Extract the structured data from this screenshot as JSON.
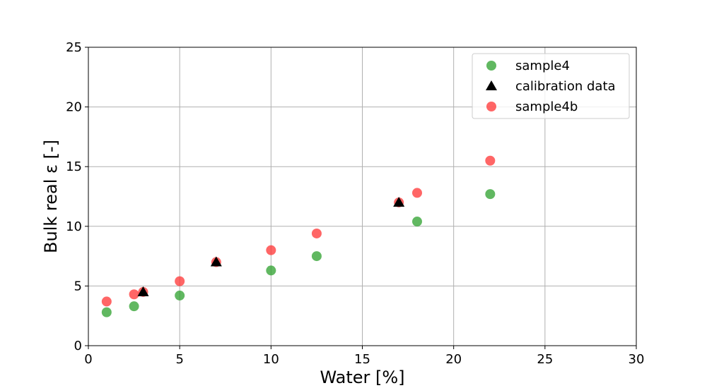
{
  "chart_data": {
    "type": "scatter",
    "title": "",
    "xlabel": "Water [%]",
    "ylabel": "Bulk real ε [-]",
    "xlim": [
      0,
      30
    ],
    "ylim": [
      0,
      25
    ],
    "xticks": [
      0,
      5,
      10,
      15,
      20,
      25,
      30
    ],
    "yticks": [
      0,
      5,
      10,
      15,
      20,
      25
    ],
    "grid": true,
    "legend_position": "top-right",
    "series": [
      {
        "name": "sample4",
        "marker": "circle",
        "color": "#2ca02c",
        "points": [
          {
            "x": 1,
            "y": 2.8
          },
          {
            "x": 2.5,
            "y": 3.3
          },
          {
            "x": 5,
            "y": 4.2
          },
          {
            "x": 10,
            "y": 6.3
          },
          {
            "x": 12.5,
            "y": 7.5
          },
          {
            "x": 18,
            "y": 10.4
          },
          {
            "x": 22,
            "y": 12.7
          }
        ]
      },
      {
        "name": "calibration data",
        "marker": "triangle",
        "color": "#000000",
        "points": [
          {
            "x": 3,
            "y": 4.5
          },
          {
            "x": 7,
            "y": 7.0
          },
          {
            "x": 17,
            "y": 12.0
          }
        ]
      },
      {
        "name": "sample4b",
        "marker": "circle",
        "color": "#ff3333",
        "points": [
          {
            "x": 1,
            "y": 3.7
          },
          {
            "x": 2.5,
            "y": 4.3
          },
          {
            "x": 3,
            "y": 4.5
          },
          {
            "x": 5,
            "y": 5.4
          },
          {
            "x": 7,
            "y": 7.0
          },
          {
            "x": 10,
            "y": 8.0
          },
          {
            "x": 12.5,
            "y": 9.4
          },
          {
            "x": 17,
            "y": 12.0
          },
          {
            "x": 18,
            "y": 12.8
          },
          {
            "x": 22,
            "y": 15.5
          }
        ]
      }
    ],
    "draw_order": [
      0,
      2,
      1
    ]
  }
}
